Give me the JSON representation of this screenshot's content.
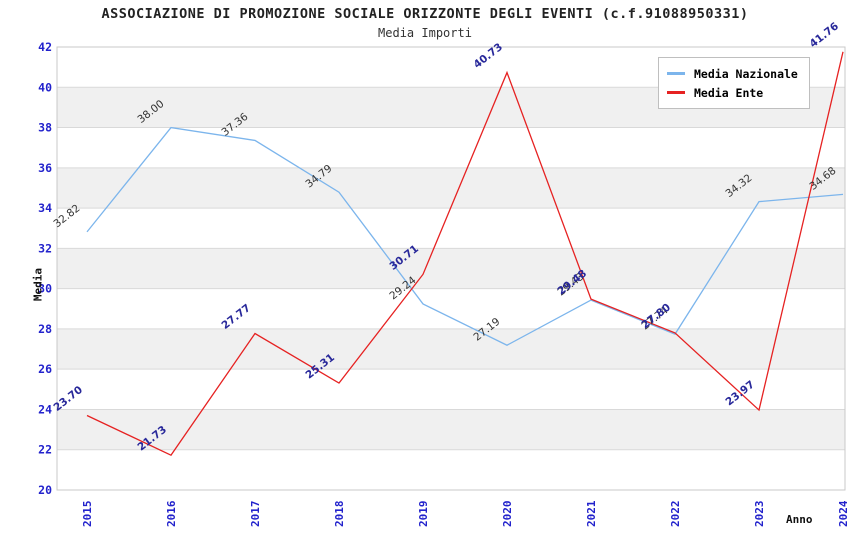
{
  "title": "ASSOCIAZIONE DI PROMOZIONE SOCIALE ORIZZONTE DEGLI EVENTI (c.f.91088950331)",
  "subtitle": "Media Importi",
  "chart_data": {
    "type": "line",
    "x": [
      2015,
      2016,
      2017,
      2018,
      2019,
      2020,
      2021,
      2022,
      2023,
      2024
    ],
    "xlabel": "Anno",
    "ylabel": "Media",
    "ylim": [
      20,
      42
    ],
    "ytick_step": 2,
    "grid": true,
    "plot_bands_alternating": true,
    "legend_position": "top-right",
    "series": [
      {
        "name": "Media Nazionale",
        "color": "#7cb5ec",
        "label_color": "#333333",
        "label_weight": "normal",
        "values": [
          32.82,
          38.0,
          37.36,
          34.79,
          29.24,
          27.19,
          29.43,
          27.74,
          34.32,
          34.68
        ]
      },
      {
        "name": "Media Ente",
        "color": "#e62222",
        "label_color": "#28289a",
        "label_weight": "bold",
        "values": [
          23.7,
          21.73,
          27.77,
          25.31,
          30.71,
          40.73,
          29.48,
          27.8,
          23.97,
          41.76
        ]
      }
    ]
  },
  "colors": {
    "tick_label": "#2222cc",
    "band_fill": "#f0f0f0",
    "gridline": "#d9d9d9",
    "plot_border": "#c9c9c9"
  }
}
